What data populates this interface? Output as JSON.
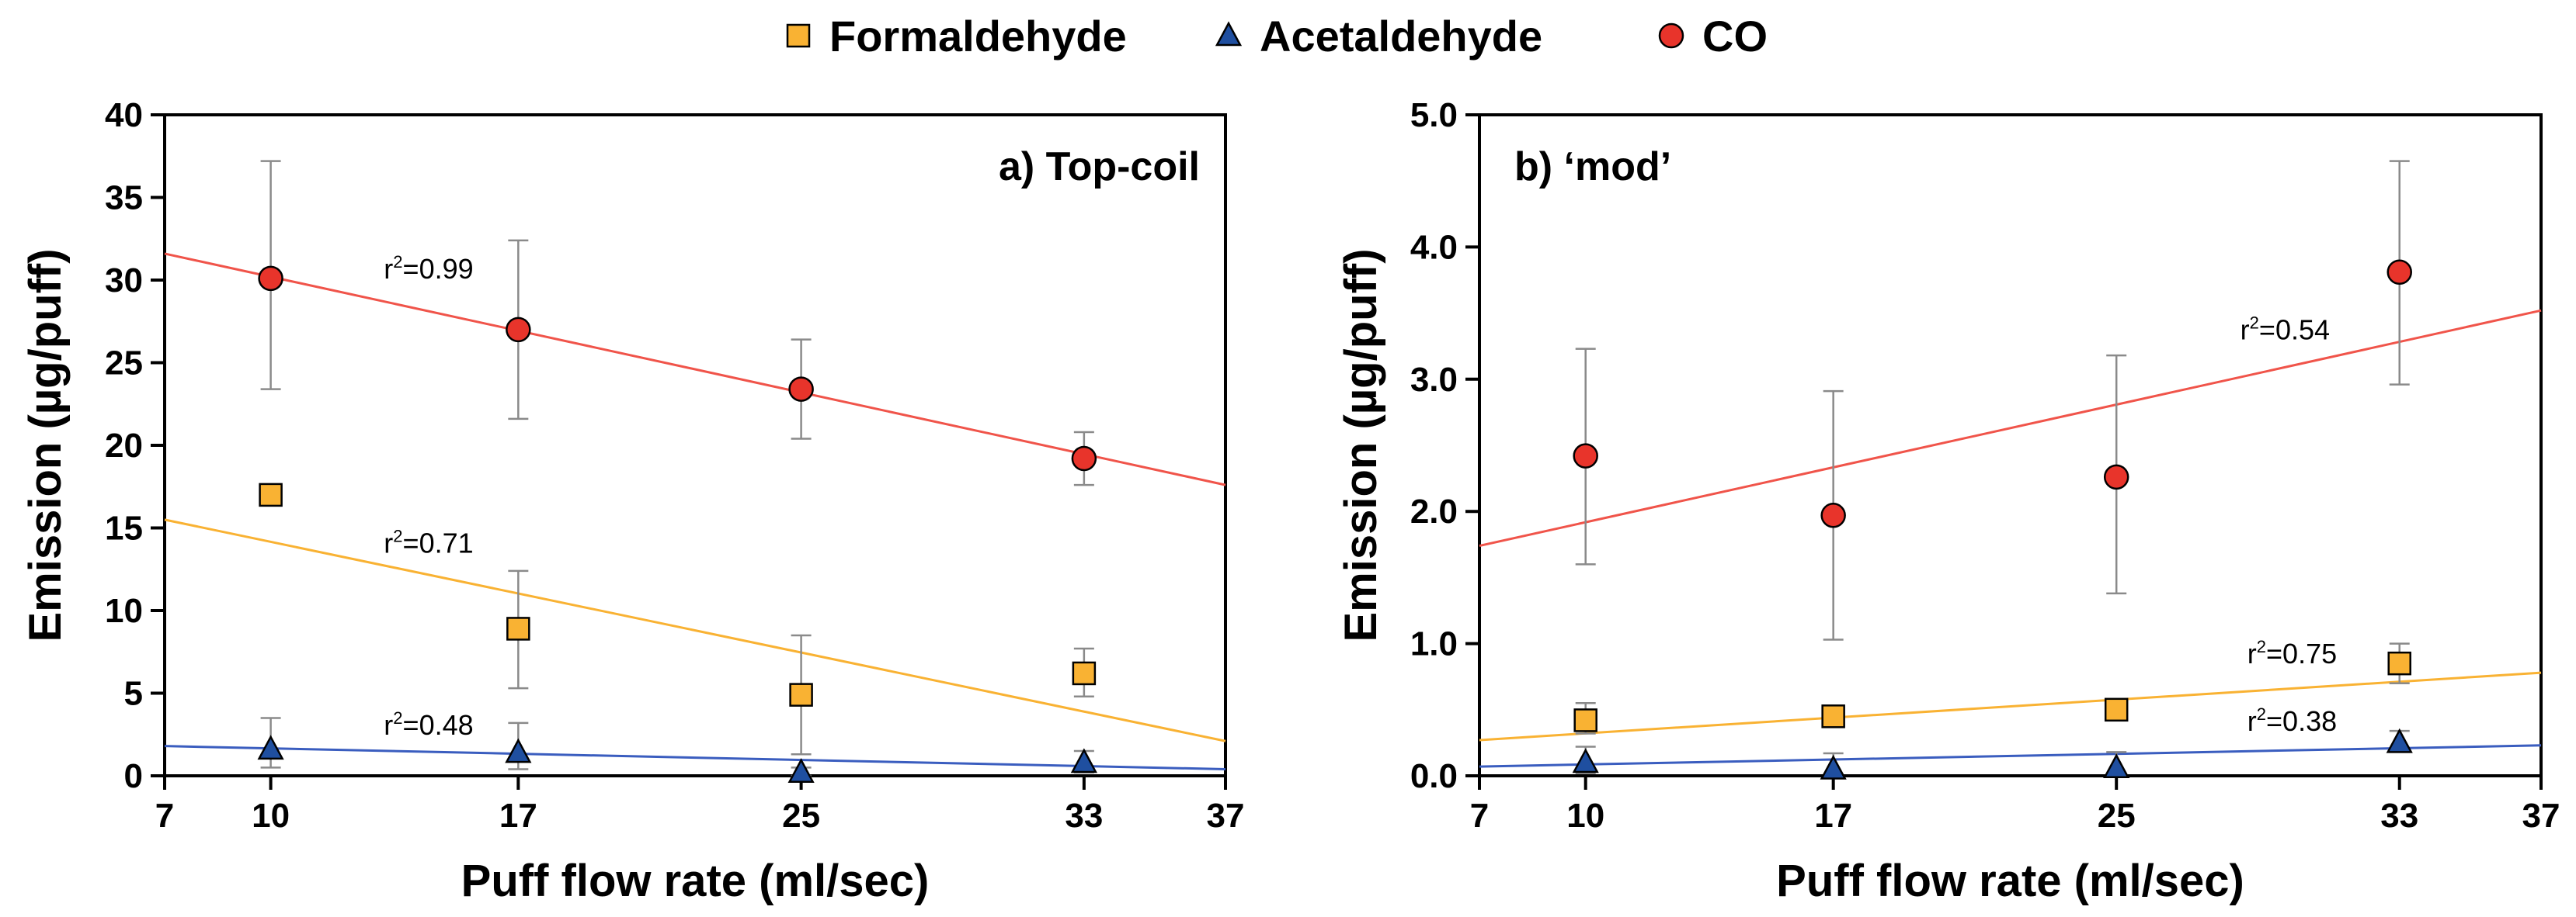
{
  "legend": [
    {
      "name": "Formaldehyde",
      "marker": "square",
      "color": "#F9B233"
    },
    {
      "name": "Acetaldehyde",
      "marker": "triangle",
      "color": "#1F4FA0"
    },
    {
      "name": "CO",
      "marker": "circle",
      "color": "#E8342B"
    }
  ],
  "colors": {
    "formaldehyde_line": "#F9B233",
    "acetaldehyde_line": "#3A5DBF",
    "co_line": "#F0544A",
    "errorbar": "#8a8a8a"
  },
  "chart_data": [
    {
      "type": "scatter",
      "panel_label": "a) Top-coil",
      "xlabel": "Puff flow rate (ml/sec)",
      "ylabel": "Emission (µg/puff)",
      "xlim": [
        7,
        37
      ],
      "ylim": [
        0,
        40
      ],
      "xticks": [
        7,
        10,
        17,
        25,
        33,
        37
      ],
      "yticks": [
        0,
        5,
        10,
        15,
        20,
        25,
        30,
        35,
        40
      ],
      "ytick_labels": [
        "0",
        "5",
        "10",
        "15",
        "20",
        "25",
        "30",
        "35",
        "40"
      ],
      "series": [
        {
          "name": "CO",
          "key": "co",
          "x": [
            10,
            17,
            25,
            33
          ],
          "y": [
            30.1,
            27.0,
            23.4,
            19.2
          ],
          "err_low": [
            23.4,
            21.6,
            20.4,
            17.6
          ],
          "err_high": [
            37.2,
            32.4,
            26.4,
            20.8
          ],
          "fit": {
            "x": [
              7,
              37
            ],
            "y": [
              31.6,
              17.6
            ]
          },
          "r2_text": "0.99",
          "r2_at": [
            13.2,
            30.1
          ]
        },
        {
          "name": "Formaldehyde",
          "key": "formaldehyde",
          "x": [
            10,
            17,
            25,
            33
          ],
          "y": [
            17.0,
            8.9,
            4.9,
            6.2
          ],
          "err_low": [
            16.4,
            5.3,
            1.3,
            4.8
          ],
          "err_high": [
            17.6,
            12.4,
            8.5,
            7.7
          ],
          "fit": {
            "x": [
              7,
              37
            ],
            "y": [
              15.5,
              2.1
            ]
          },
          "r2_text": "0.71",
          "r2_at": [
            13.2,
            13.5
          ]
        },
        {
          "name": "Acetaldehyde",
          "key": "acetaldehyde",
          "x": [
            10,
            17,
            25,
            33
          ],
          "y": [
            1.6,
            1.4,
            0.2,
            0.8
          ],
          "err_low": [
            0.5,
            0.4,
            0.0,
            0.2
          ],
          "err_high": [
            3.5,
            3.2,
            0.5,
            1.5
          ],
          "fit": {
            "x": [
              7,
              37
            ],
            "y": [
              1.8,
              0.4
            ]
          },
          "r2_text": "0.48",
          "r2_at": [
            13.2,
            2.5
          ]
        }
      ]
    },
    {
      "type": "scatter",
      "panel_label": "b) ‘mod’",
      "xlabel": "Puff flow rate (ml/sec)",
      "ylabel": "Emission (µg/puff)",
      "xlim": [
        7,
        37
      ],
      "ylim": [
        0,
        5
      ],
      "xticks": [
        7,
        10,
        17,
        25,
        33,
        37
      ],
      "yticks": [
        0,
        1,
        2,
        3,
        4,
        5
      ],
      "ytick_labels": [
        "0.0",
        "1.0",
        "2.0",
        "3.0",
        "4.0",
        "5.0"
      ],
      "series": [
        {
          "name": "CO",
          "key": "co",
          "x": [
            10,
            17,
            25,
            33
          ],
          "y": [
            2.42,
            1.97,
            2.26,
            3.81
          ],
          "err_low": [
            1.6,
            1.03,
            1.38,
            2.96
          ],
          "err_high": [
            3.23,
            2.91,
            3.18,
            4.65
          ],
          "fit": {
            "x": [
              7,
              37
            ],
            "y": [
              1.74,
              3.52
            ]
          },
          "r2_text": "0.54",
          "r2_at": [
            28.5,
            3.3
          ]
        },
        {
          "name": "Formaldehyde",
          "key": "formaldehyde",
          "x": [
            10,
            17,
            25,
            33
          ],
          "y": [
            0.42,
            0.45,
            0.5,
            0.85
          ],
          "err_low": [
            0.32,
            0.38,
            0.44,
            0.7
          ],
          "err_high": [
            0.55,
            0.53,
            0.56,
            1.0
          ],
          "fit": {
            "x": [
              7,
              37
            ],
            "y": [
              0.27,
              0.78
            ]
          },
          "r2_text": "0.75",
          "r2_at": [
            28.7,
            0.85
          ]
        },
        {
          "name": "Acetaldehyde",
          "key": "acetaldehyde",
          "x": [
            10,
            17,
            25,
            33
          ],
          "y": [
            0.1,
            0.05,
            0.06,
            0.25
          ],
          "err_low": [
            0.02,
            0.01,
            0.01,
            0.18
          ],
          "err_high": [
            0.22,
            0.17,
            0.18,
            0.34
          ],
          "fit": {
            "x": [
              7,
              37
            ],
            "y": [
              0.07,
              0.23
            ]
          },
          "r2_text": "0.38",
          "r2_at": [
            28.7,
            0.34
          ]
        }
      ]
    }
  ]
}
